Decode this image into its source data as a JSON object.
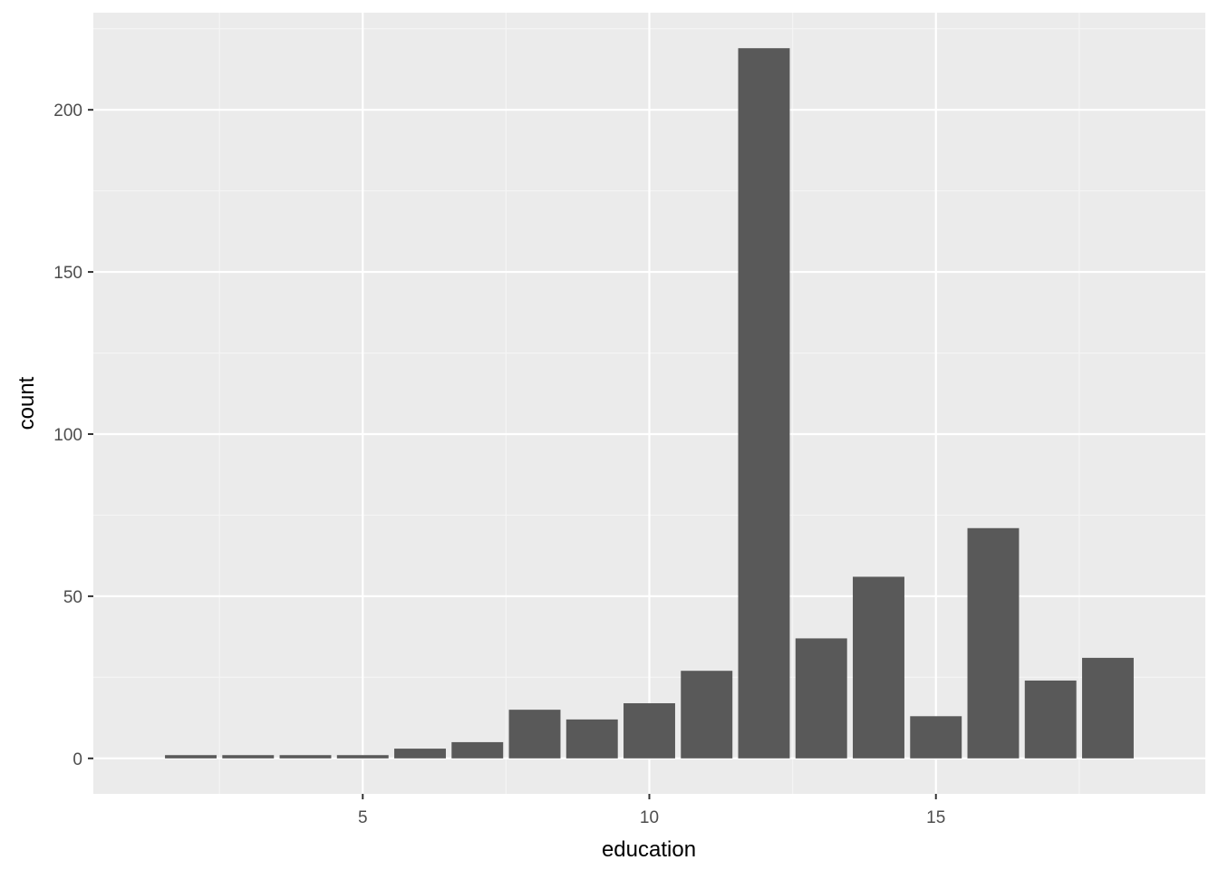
{
  "chart_data": {
    "type": "bar",
    "title": "",
    "xlabel": "education",
    "ylabel": "count",
    "x": [
      2,
      3,
      4,
      5,
      6,
      7,
      8,
      9,
      10,
      11,
      12,
      13,
      14,
      15,
      16,
      17,
      18
    ],
    "values": [
      1,
      1,
      1,
      1,
      3,
      5,
      15,
      12,
      17,
      27,
      219,
      37,
      56,
      13,
      71,
      24,
      31
    ],
    "xlim": [
      0.3,
      19.7
    ],
    "ylim": [
      -10.95,
      229.95
    ],
    "x_ticks": [
      5,
      10,
      15
    ],
    "y_ticks": [
      0,
      50,
      100,
      150,
      200
    ],
    "x_tick_labels": [
      "5",
      "10",
      "15"
    ],
    "y_tick_labels": [
      "0",
      "50",
      "100",
      "150",
      "200"
    ],
    "grid": true,
    "legend": "none",
    "colors": {
      "panel_background": "#ebebeb",
      "grid_major": "#ffffff",
      "grid_minor": "#f5f5f5",
      "bar_fill": "#595959",
      "tick_text": "#4d4d4d",
      "tick_mark": "#333333",
      "axis_title_text": "#000000"
    }
  }
}
